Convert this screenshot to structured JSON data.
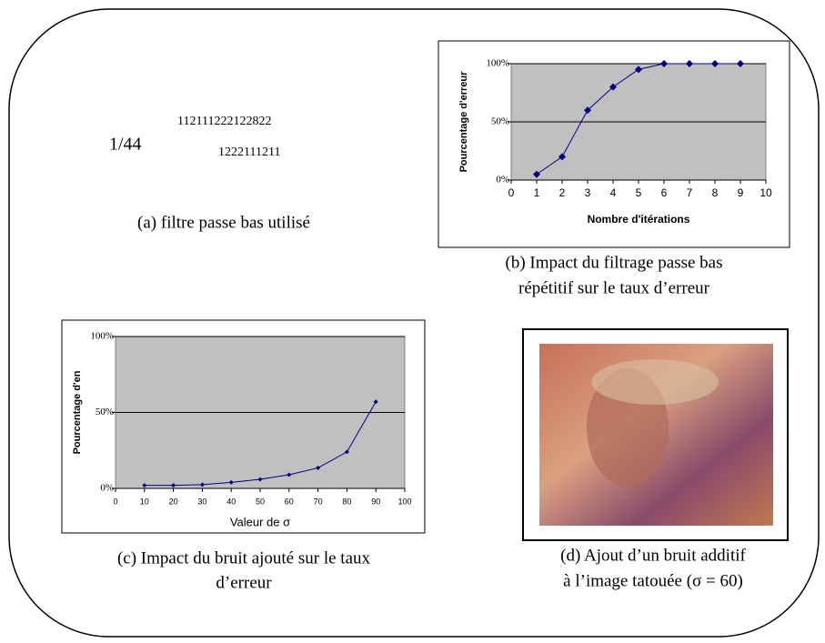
{
  "filter": {
    "fraction": "1/44",
    "row1": "112111222122822",
    "row2": "1222111211",
    "caption": "(a) filtre passe bas utilisé"
  },
  "chart_data": [
    {
      "type": "line",
      "caption": [
        "(b) Impact du filtrage passe bas",
        "répétitif sur le taux d’erreur"
      ],
      "x_label": "Nombre d'itérations",
      "y_label": "Pourcentage d'erreur",
      "x": [
        1,
        2,
        3,
        4,
        5,
        6,
        7,
        8,
        9
      ],
      "color": "#000080",
      "series": [
        {
          "values": [
            5,
            20,
            60,
            80,
            95,
            100,
            100,
            100,
            100
          ],
          "color": "#000080"
        }
      ],
      "xlim": [
        0,
        10
      ],
      "xticks": [
        0,
        1,
        2,
        3,
        4,
        5,
        6,
        7,
        8,
        9,
        10
      ],
      "ylim": [
        0,
        100
      ],
      "yticks": [
        {
          "value": 0,
          "label": "0%"
        },
        {
          "value": 50,
          "label": "50%"
        },
        {
          "value": 100,
          "label": "100%"
        }
      ],
      "grid": true
    },
    {
      "type": "line",
      "caption": [
        "(c) Impact du bruit ajouté sur le taux",
        "d’erreur"
      ],
      "x_label": "Valeur de σ",
      "y_label": "Pourcentage d'en",
      "x": [
        10,
        20,
        30,
        40,
        50,
        60,
        70,
        80,
        90
      ],
      "color": "#000080",
      "series": [
        {
          "values": [
            2,
            2,
            2.5,
            4,
            6,
            9,
            13.5,
            24,
            57
          ],
          "color": "#000080"
        }
      ],
      "xlim": [
        0,
        100
      ],
      "xticks": [
        0,
        10,
        20,
        30,
        40,
        50,
        60,
        70,
        80,
        90,
        100
      ],
      "ylim": [
        0,
        100
      ],
      "yticks": [
        {
          "value": 0,
          "label": "0%"
        },
        {
          "value": 50,
          "label": "50%"
        },
        {
          "value": 100,
          "label": "100%"
        }
      ],
      "grid": true
    }
  ],
  "image": {
    "caption": [
      "(d) Ajout d’un bruit additif",
      "à l’image tatouée (σ = 60)"
    ]
  }
}
